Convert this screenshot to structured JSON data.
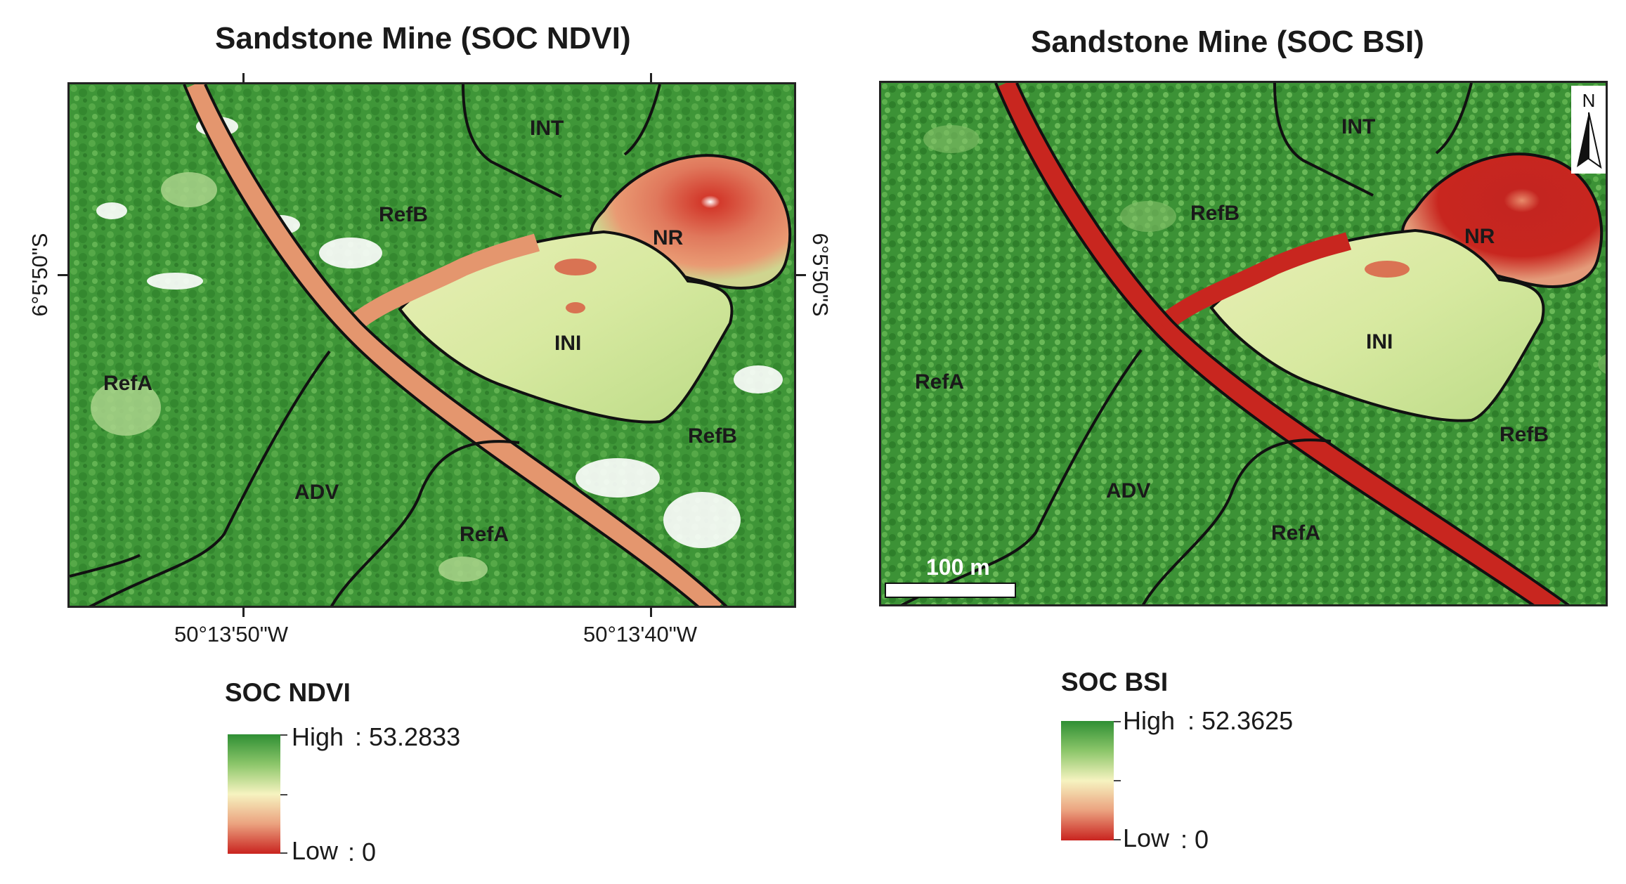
{
  "colors": {
    "high": "#2f8f34",
    "mid_high": "#8cc66a",
    "mid": "#f4f2bf",
    "mid_low": "#eba27f",
    "low": "#c9231f",
    "forest": "#4a9d3e",
    "boundary": "#111111"
  },
  "maps": [
    {
      "title": "Sandstone Mine (SOC NDVI)",
      "regions": [
        "INT",
        "RefB",
        "NR",
        "INI",
        "RefA",
        "RefB",
        "ADV",
        "RefA"
      ],
      "coords": {
        "lat_left": "6°5'50\"S",
        "lat_right": "6°5'50\"S",
        "lon_1": "50°13'50\"W",
        "lon_2": "50°13'40\"W"
      }
    },
    {
      "title": "Sandstone Mine (SOC BSI)",
      "regions": [
        "INT",
        "RefB",
        "NR",
        "INI",
        "RefA",
        "RefB",
        "ADV",
        "RefA"
      ],
      "north_arrow": "N",
      "scale_bar": "100 m"
    }
  ],
  "legends": [
    {
      "title": "SOC NDVI",
      "high": "High",
      "high_value": ": 53.2833",
      "low": "Low",
      "low_value": ": 0"
    },
    {
      "title": "SOC BSI",
      "high": "High",
      "high_value": ": 52.3625",
      "low": "Low",
      "low_value": ": 0"
    }
  ]
}
